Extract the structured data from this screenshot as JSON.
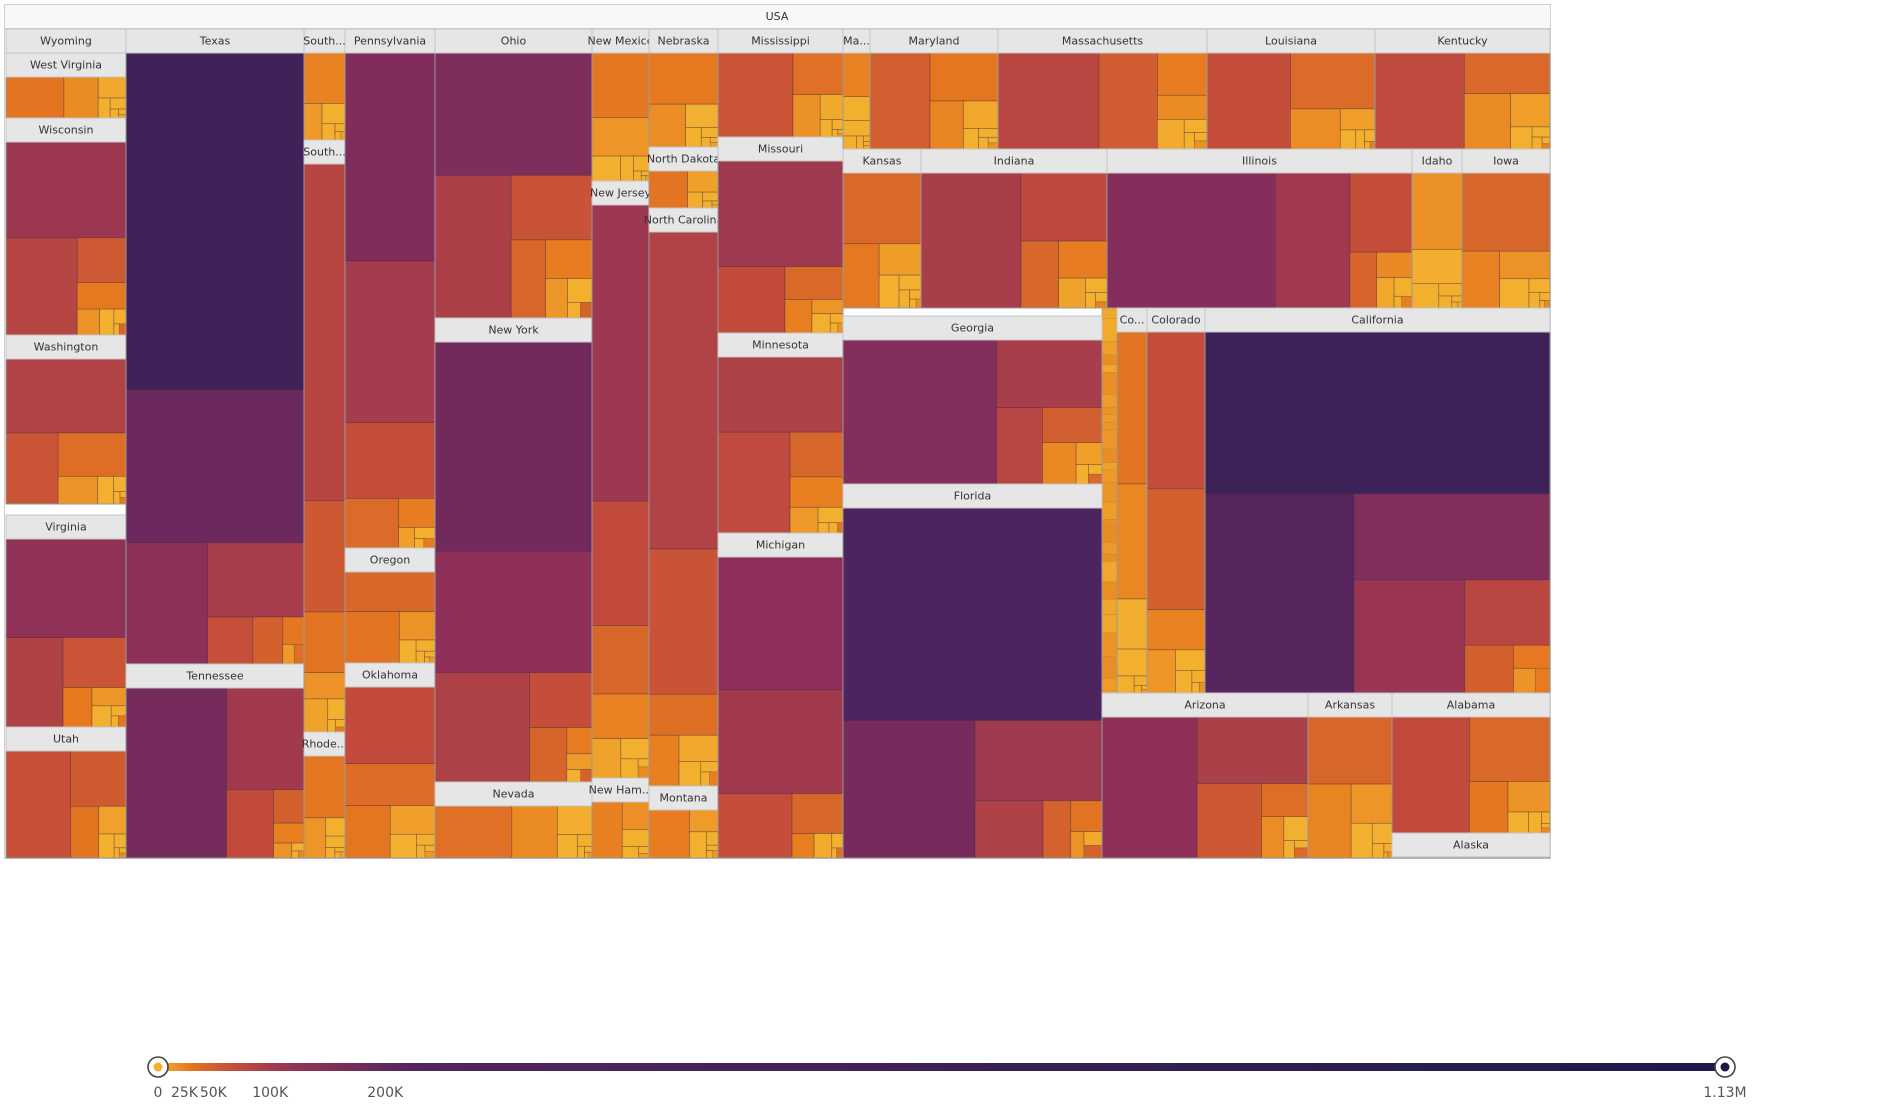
{
  "chart_data": {
    "type": "treemap",
    "title": "USA",
    "color_scale": {
      "min": 0,
      "max": 1130000,
      "ticks": [
        "0",
        "25K",
        "50K",
        "100K",
        "200K",
        "1.13M"
      ],
      "tick_values": [
        0,
        25000,
        50000,
        100000,
        200000,
        1130000
      ],
      "stops": [
        "#f3b02f",
        "#e6791f",
        "#c24b3c",
        "#8c2f5a",
        "#4e2460",
        "#1c1a4a"
      ]
    },
    "states": [
      {
        "name": "Wyoming",
        "label": "Wyoming"
      },
      {
        "name": "West Virginia",
        "label": "West Virginia"
      },
      {
        "name": "Wisconsin",
        "label": "Wisconsin"
      },
      {
        "name": "Washington",
        "label": "Washington"
      },
      {
        "name": "Virginia",
        "label": "Virginia"
      },
      {
        "name": "Utah",
        "label": "Utah"
      },
      {
        "name": "Texas",
        "label": "Texas"
      },
      {
        "name": "Tennessee",
        "label": "Tennessee"
      },
      {
        "name": "South Dakota",
        "label": "South..."
      },
      {
        "name": "South Carolina",
        "label": "South..."
      },
      {
        "name": "Rhode Island",
        "label": "Rhode..."
      },
      {
        "name": "Pennsylvania",
        "label": "Pennsylvania"
      },
      {
        "name": "Oregon",
        "label": "Oregon"
      },
      {
        "name": "Oklahoma",
        "label": "Oklahoma"
      },
      {
        "name": "Ohio",
        "label": "Ohio"
      },
      {
        "name": "New York",
        "label": "New York"
      },
      {
        "name": "Nevada",
        "label": "Nevada"
      },
      {
        "name": "New Mexico",
        "label": "New Mexico"
      },
      {
        "name": "New Jersey",
        "label": "New Jersey"
      },
      {
        "name": "New Hampshire",
        "label": "New Ham..."
      },
      {
        "name": "Nebraska",
        "label": "Nebraska"
      },
      {
        "name": "North Dakota",
        "label": "North Dakota"
      },
      {
        "name": "North Carolina",
        "label": "North Carolina"
      },
      {
        "name": "Montana",
        "label": "Montana"
      },
      {
        "name": "Mississippi",
        "label": "Mississippi"
      },
      {
        "name": "Missouri",
        "label": "Missouri"
      },
      {
        "name": "Minnesota",
        "label": "Minnesota"
      },
      {
        "name": "Michigan",
        "label": "Michigan"
      },
      {
        "name": "Maine",
        "label": "Ma..."
      },
      {
        "name": "Maryland",
        "label": "Maryland"
      },
      {
        "name": "Massachusetts",
        "label": "Massachusetts"
      },
      {
        "name": "Louisiana",
        "label": "Louisiana"
      },
      {
        "name": "Kentucky",
        "label": "Kentucky"
      },
      {
        "name": "Kansas",
        "label": "Kansas"
      },
      {
        "name": "Indiana",
        "label": "Indiana"
      },
      {
        "name": "Illinois",
        "label": "Illinois"
      },
      {
        "name": "Idaho",
        "label": "Idaho"
      },
      {
        "name": "Iowa",
        "label": "Iowa"
      },
      {
        "name": "Georgia",
        "label": "Georgia"
      },
      {
        "name": "Florida",
        "label": "Florida"
      },
      {
        "name": "Connecticut",
        "label": "Co..."
      },
      {
        "name": "Colorado",
        "label": "Colorado"
      },
      {
        "name": "California",
        "label": "California"
      },
      {
        "name": "Arizona",
        "label": "Arizona"
      },
      {
        "name": "Arkansas",
        "label": "Arkansas"
      },
      {
        "name": "Alabama",
        "label": "Alabama"
      },
      {
        "name": "Alaska",
        "label": "Alaska"
      }
    ]
  }
}
